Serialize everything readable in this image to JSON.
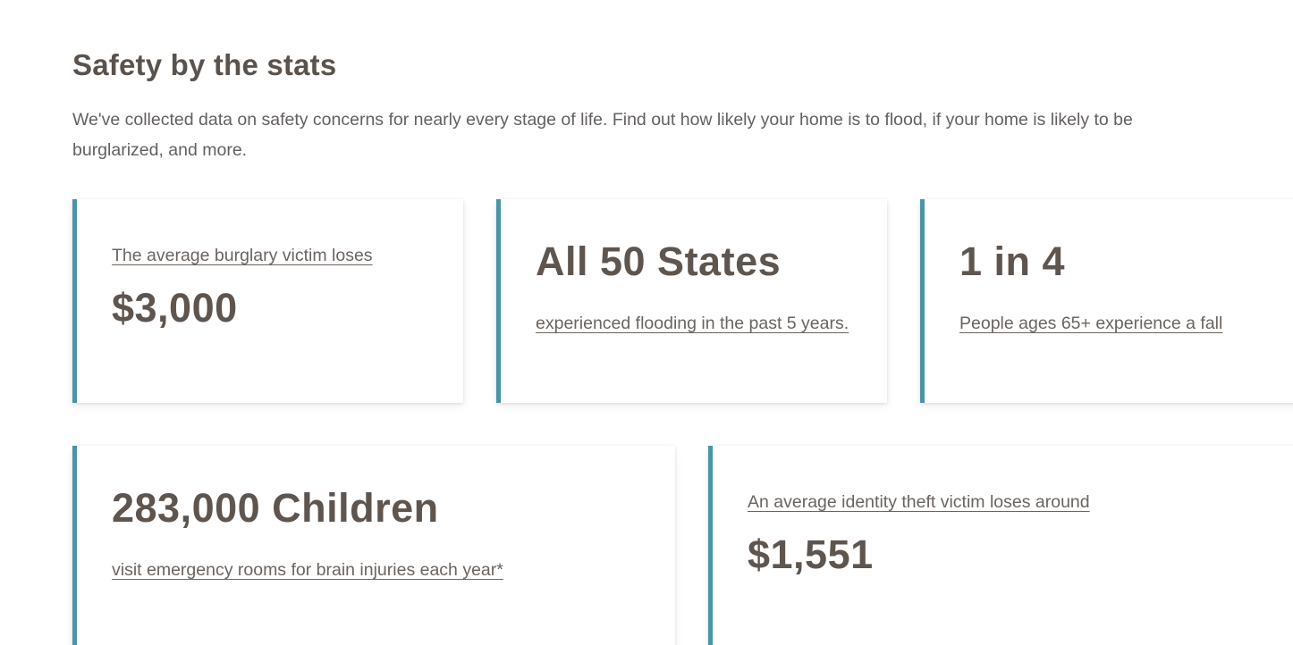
{
  "page": {
    "title": "Safety by the stats",
    "intro": "We've collected data on safety concerns for nearly every stage of life. Find out how likely your home is to flood, if your home is likely to be burglarized, and more."
  },
  "colors": {
    "accent_teal": "#4A94A6",
    "heading_text": "#5A524C",
    "stat_text": "#5E554F",
    "body_text": "#646060",
    "link_text": "#6B6460",
    "card_background": "#FFFFFF"
  },
  "cards": [
    {
      "label": "The average burglary victim loses",
      "stat": "$3,000"
    },
    {
      "stat": "All 50 States",
      "label": "experienced flooding in the past 5 years."
    },
    {
      "stat": "1 in 4",
      "label": "People ages 65+ experience a fall"
    },
    {
      "stat": "283,000 Children",
      "label": "visit emergency rooms for brain injuries each year*"
    },
    {
      "label": "An average identity theft victim loses around",
      "stat": "$1,551"
    }
  ]
}
